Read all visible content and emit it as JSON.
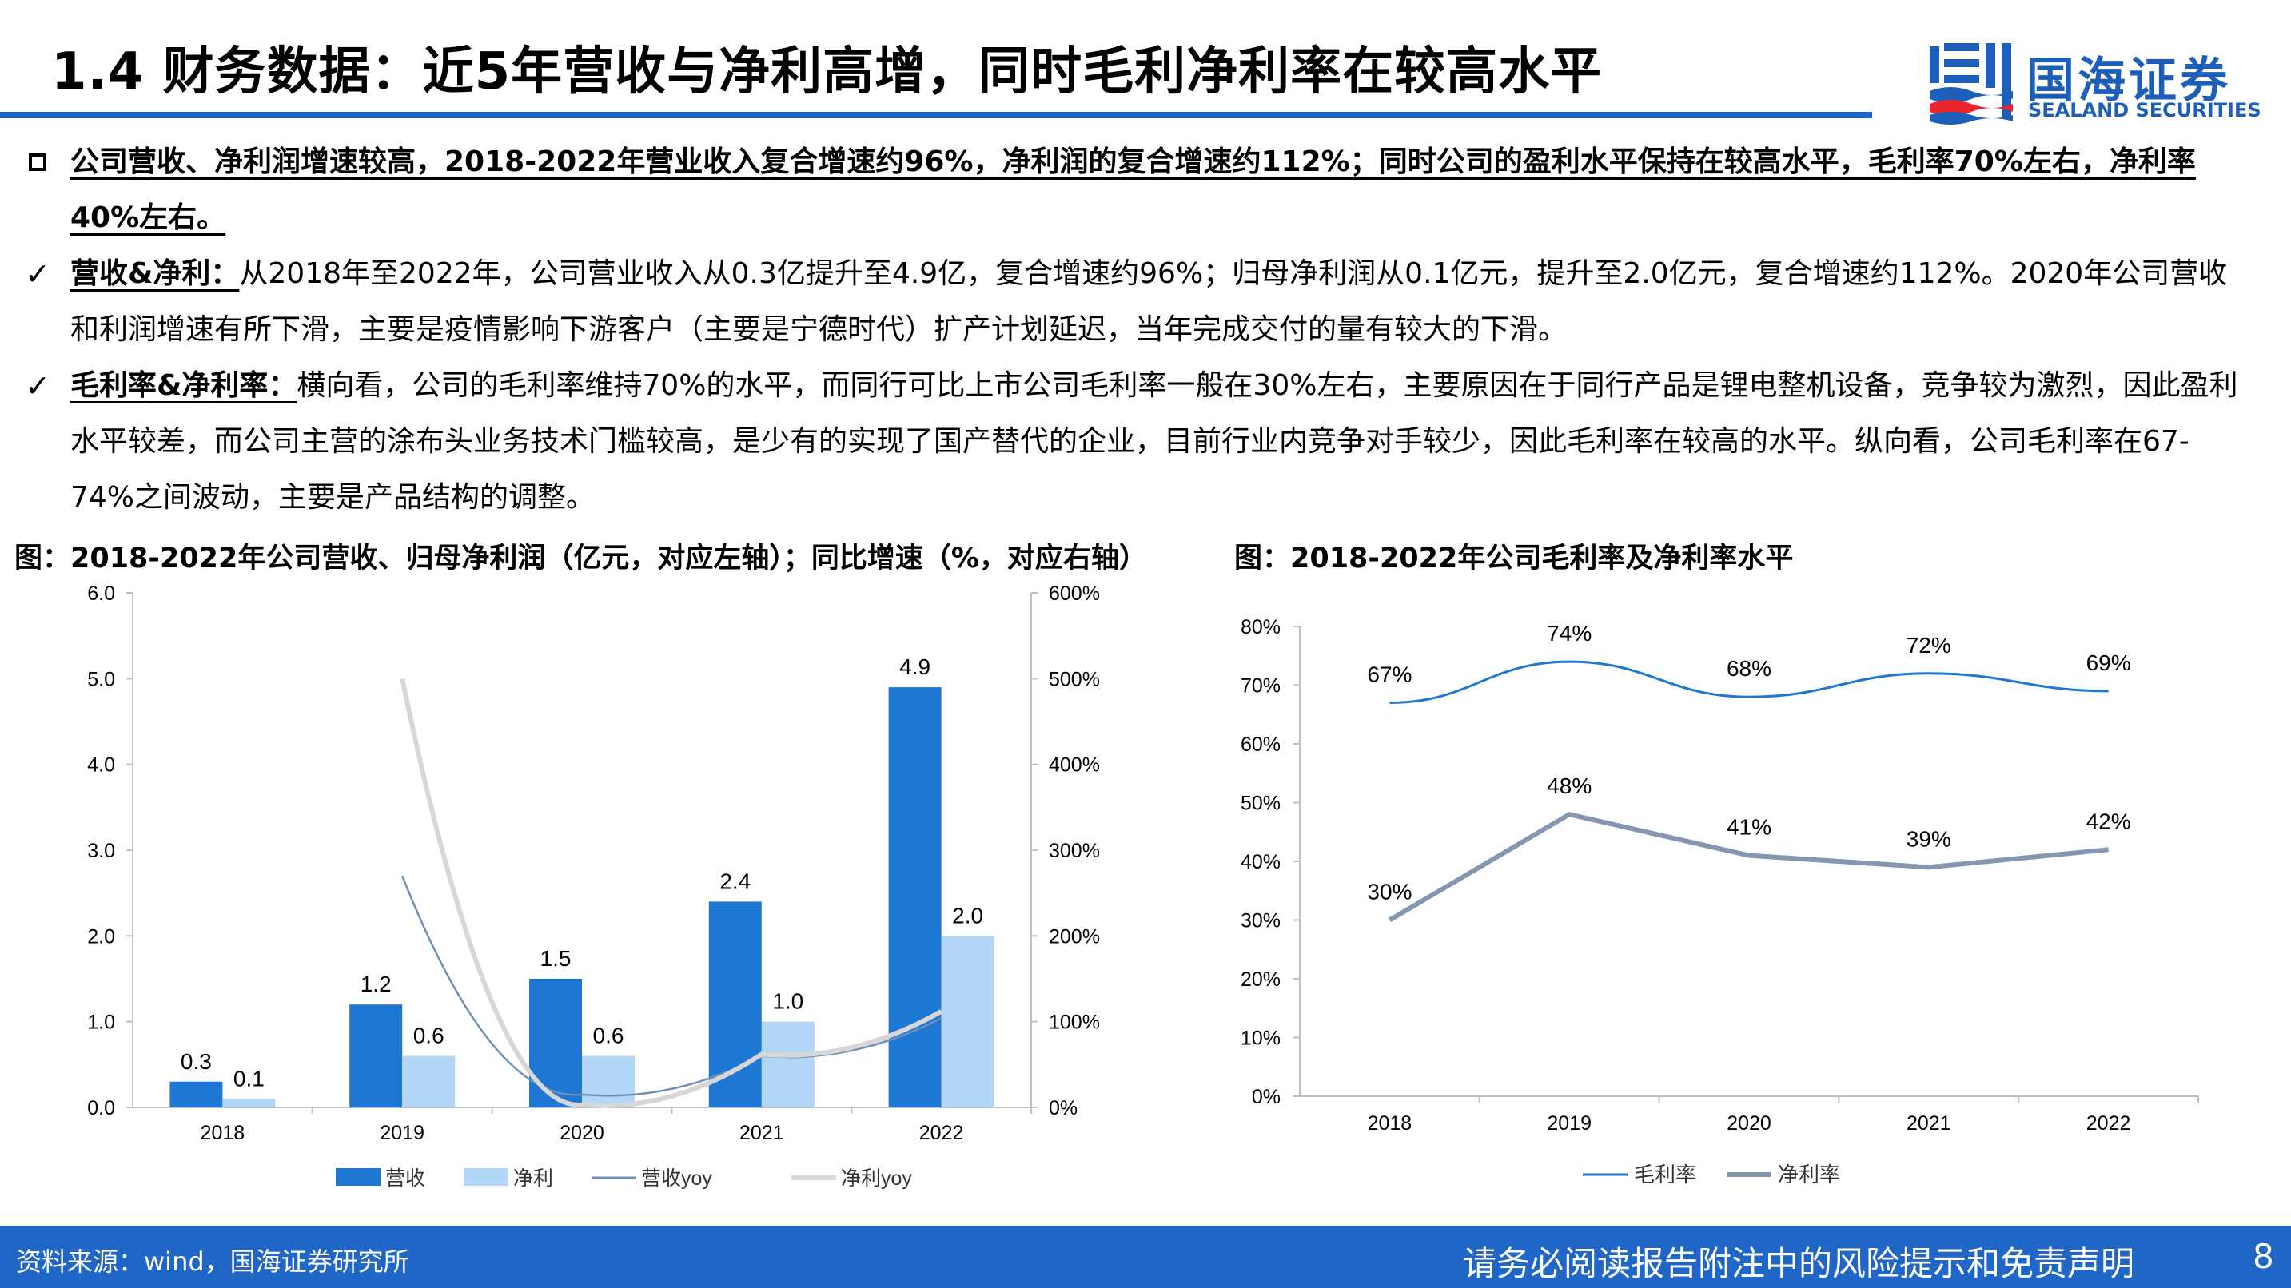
{
  "header": {
    "title": "1.4 财务数据：近5年营收与净利高增，同时毛利净利率在较高水平",
    "logo_cn": "国海证券",
    "logo_en": "SEALAND SECURITIES",
    "brand_color": "#1f66c6"
  },
  "bullets": [
    {
      "icon": "square-bullet-icon",
      "lead": "",
      "text": "公司营收、净利润增速较高，2018-2022年营业收入复合增速约96%，净利润的复合增速约112%；同时公司的盈利水平保持在较高水平，毛利率70%左右，净利率40%左右。"
    },
    {
      "icon": "check-icon",
      "lead": "营收&净利：",
      "text": "从2018年至2022年，公司营业收入从0.3亿提升至4.9亿，复合增速约96%；归母净利润从0.1亿元，提升至2.0亿元，复合增速约112%。2020年公司营收和利润增速有所下滑，主要是疫情影响下游客户（主要是宁德时代）扩产计划延迟，当年完成交付的量有较大的下滑。"
    },
    {
      "icon": "check-icon",
      "lead": "毛利率&净利率：",
      "text": "横向看，公司的毛利率维持70%的水平，而同行可比上市公司毛利率一般在30%左右，主要原因在于同行产品是锂电整机设备，竞争较为激烈，因此盈利水平较差，而公司主营的涂布头业务技术门槛较高，是少有的实现了国产替代的企业，目前行业内竞争对手较少，因此毛利率在较高的水平。纵向看，公司毛利率在67-74%之间波动，主要是产品结构的调整。"
    }
  ],
  "chart_titles": {
    "left": "图：2018-2022年公司营收、归母净利润（亿元，对应左轴）；同比增速（%，对应右轴）",
    "right": "图：2018-2022年公司毛利率及净利率水平"
  },
  "chart_data": [
    {
      "type": "bar",
      "categories": [
        "2018",
        "2019",
        "2020",
        "2021",
        "2022"
      ],
      "y_left_ticks": [
        "0.0",
        "1.0",
        "2.0",
        "3.0",
        "4.0",
        "5.0",
        "6.0"
      ],
      "y_right_ticks": [
        "0%",
        "100%",
        "200%",
        "300%",
        "400%",
        "500%",
        "600%"
      ],
      "ylim_left": [
        0,
        6
      ],
      "ylim_right": [
        0,
        600
      ],
      "series": [
        {
          "name": "营收",
          "kind": "bar",
          "axis": "left",
          "color": "#1f77d4",
          "values": [
            0.3,
            1.2,
            1.5,
            2.4,
            4.9
          ],
          "labels": [
            "0.3",
            "1.2",
            "1.5",
            "2.4",
            "4.9"
          ]
        },
        {
          "name": "净利",
          "kind": "bar",
          "axis": "left",
          "color": "#b4d6f6",
          "values": [
            0.1,
            0.6,
            0.6,
            1.0,
            2.0
          ],
          "labels": [
            "0.1",
            "0.6",
            "0.6",
            "1.0",
            "2.0"
          ]
        },
        {
          "name": "营收yoy",
          "kind": "line",
          "axis": "right",
          "color": "#6f8fb8",
          "values": [
            null,
            270,
            15,
            60,
            104
          ]
        },
        {
          "name": "净利yoy",
          "kind": "line",
          "axis": "right",
          "color": "#d7d7d7",
          "values": [
            null,
            500,
            3,
            62,
            112
          ]
        }
      ],
      "legend_position": "bottom",
      "grid": false
    },
    {
      "type": "line",
      "categories": [
        "2018",
        "2019",
        "2020",
        "2021",
        "2022"
      ],
      "y_ticks": [
        "0%",
        "10%",
        "20%",
        "30%",
        "40%",
        "50%",
        "60%",
        "70%",
        "80%"
      ],
      "ylim": [
        0,
        80
      ],
      "series": [
        {
          "name": "毛利率",
          "color": "#1f77d4",
          "values": [
            67,
            74,
            68,
            72,
            69
          ],
          "labels": [
            "67%",
            "74%",
            "68%",
            "72%",
            "69%"
          ]
        },
        {
          "name": "净利率",
          "color": "#8496b0",
          "values": [
            30,
            48,
            41,
            39,
            42
          ],
          "labels": [
            "30%",
            "48%",
            "41%",
            "39%",
            "42%"
          ]
        }
      ],
      "legend_position": "bottom",
      "grid": false
    }
  ],
  "footer": {
    "source": "资料来源：wind，国海证券研究所",
    "disclaimer": "请务必阅读报告附注中的风险提示和免责声明",
    "page": "8"
  }
}
